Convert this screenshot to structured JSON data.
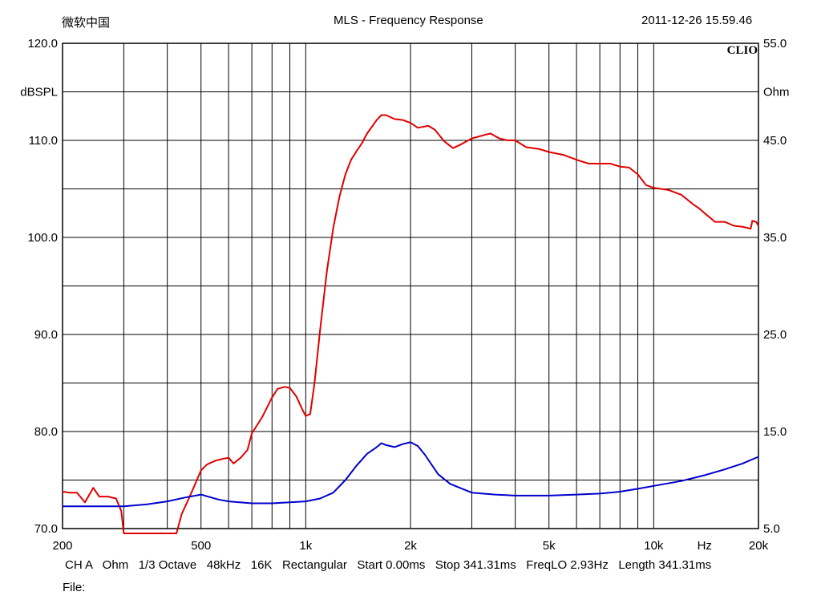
{
  "header": {
    "app_label": "微软中国",
    "title": "MLS - Frequency Response",
    "timestamp": "2011-12-26 15.59.46",
    "logo": "CLIO"
  },
  "footer": {
    "line": "CH A   Ohm   1/3 Octave   48kHz   16K   Rectangular   Start 0.00ms   Stop 341.31ms   FreqLO 2.93Hz   Length 341.31ms",
    "file_label": "File:"
  },
  "chart_data": {
    "type": "line",
    "title": "MLS - Frequency Response",
    "xlabel": "Hz",
    "ylabel_left": "dBSPL",
    "ylabel_right": "Ohm",
    "x_scale": "log",
    "xlim": [
      200,
      20000
    ],
    "ylim_left": [
      70,
      120
    ],
    "ylim_right": [
      5,
      55
    ],
    "grid": true,
    "x_ticks": [
      200,
      300,
      400,
      500,
      600,
      700,
      800,
      900,
      1000,
      2000,
      3000,
      4000,
      5000,
      6000,
      7000,
      8000,
      9000,
      10000,
      20000
    ],
    "x_tick_labels": [
      {
        "value": 200,
        "label": "200"
      },
      {
        "value": 500,
        "label": "500"
      },
      {
        "value": 1000,
        "label": "1k"
      },
      {
        "value": 2000,
        "label": "2k"
      },
      {
        "value": 5000,
        "label": "5k"
      },
      {
        "value": 10000,
        "label": "10k"
      },
      {
        "value": 20000,
        "label": "20k"
      }
    ],
    "x_unit_label": {
      "value": 14000,
      "label": "Hz"
    },
    "y_left_ticks": [
      70,
      75,
      80,
      85,
      90,
      95,
      100,
      105,
      110,
      115,
      120
    ],
    "y_left_tick_labels": [
      {
        "value": 70,
        "label": "70.0"
      },
      {
        "value": 80,
        "label": "80.0"
      },
      {
        "value": 90,
        "label": "90.0"
      },
      {
        "value": 100,
        "label": "100.0"
      },
      {
        "value": 110,
        "label": "110.0"
      },
      {
        "value": 120,
        "label": "120.0"
      }
    ],
    "y_left_unit_label": {
      "value": 115,
      "label": "dBSPL"
    },
    "y_right_tick_labels": [
      {
        "value": 5,
        "label": "5.0"
      },
      {
        "value": 15,
        "label": "15.0"
      },
      {
        "value": 25,
        "label": "25.0"
      },
      {
        "value": 35,
        "label": "35.0"
      },
      {
        "value": 45,
        "label": "45.0"
      },
      {
        "value": 55,
        "label": "55.0"
      }
    ],
    "y_right_unit_label": {
      "value": 50,
      "label": "Ohm"
    },
    "series": [
      {
        "axis": "left",
        "color": "#e00000",
        "points": [
          [
            200,
            73.8
          ],
          [
            210,
            73.7
          ],
          [
            220,
            73.7
          ],
          [
            232,
            72.7
          ],
          [
            245,
            74.2
          ],
          [
            255,
            73.3
          ],
          [
            270,
            73.3
          ],
          [
            285,
            73.1
          ],
          [
            295,
            71.8
          ],
          [
            300,
            69.5
          ],
          [
            425,
            69.5
          ],
          [
            440,
            71.5
          ],
          [
            460,
            73.0
          ],
          [
            480,
            74.5
          ],
          [
            500,
            76.0
          ],
          [
            520,
            76.6
          ],
          [
            550,
            77.0
          ],
          [
            580,
            77.2
          ],
          [
            600,
            77.3
          ],
          [
            620,
            76.7
          ],
          [
            650,
            77.3
          ],
          [
            680,
            78.1
          ],
          [
            700,
            79.8
          ],
          [
            750,
            81.5
          ],
          [
            800,
            83.5
          ],
          [
            830,
            84.4
          ],
          [
            870,
            84.6
          ],
          [
            900,
            84.5
          ],
          [
            940,
            83.6
          ],
          [
            980,
            82.2
          ],
          [
            1000,
            81.6
          ],
          [
            1030,
            81.8
          ],
          [
            1060,
            85.0
          ],
          [
            1100,
            90.5
          ],
          [
            1150,
            96.5
          ],
          [
            1200,
            101.0
          ],
          [
            1250,
            104.2
          ],
          [
            1300,
            106.5
          ],
          [
            1350,
            108.0
          ],
          [
            1400,
            108.9
          ],
          [
            1450,
            109.7
          ],
          [
            1500,
            110.7
          ],
          [
            1600,
            112.1
          ],
          [
            1650,
            112.6
          ],
          [
            1700,
            112.6
          ],
          [
            1800,
            112.2
          ],
          [
            1900,
            112.1
          ],
          [
            2000,
            111.8
          ],
          [
            2100,
            111.3
          ],
          [
            2250,
            111.5
          ],
          [
            2350,
            111.1
          ],
          [
            2500,
            109.9
          ],
          [
            2650,
            109.2
          ],
          [
            2800,
            109.6
          ],
          [
            3000,
            110.2
          ],
          [
            3300,
            110.6
          ],
          [
            3400,
            110.7
          ],
          [
            3600,
            110.2
          ],
          [
            3800,
            110.0
          ],
          [
            4000,
            110.0
          ],
          [
            4300,
            109.3
          ],
          [
            4700,
            109.1
          ],
          [
            5000,
            108.8
          ],
          [
            5500,
            108.5
          ],
          [
            6000,
            108.0
          ],
          [
            6500,
            107.6
          ],
          [
            7000,
            107.6
          ],
          [
            7500,
            107.6
          ],
          [
            8000,
            107.3
          ],
          [
            8500,
            107.2
          ],
          [
            9000,
            106.5
          ],
          [
            9500,
            105.4
          ],
          [
            10000,
            105.1
          ],
          [
            11000,
            104.9
          ],
          [
            12000,
            104.4
          ],
          [
            13000,
            103.4
          ],
          [
            13500,
            103.0
          ],
          [
            14000,
            102.5
          ],
          [
            15000,
            101.6
          ],
          [
            16000,
            101.6
          ],
          [
            17000,
            101.2
          ],
          [
            18000,
            101.1
          ],
          [
            19000,
            100.9
          ],
          [
            19200,
            101.7
          ],
          [
            19700,
            101.6
          ],
          [
            20000,
            101.2
          ]
        ]
      },
      {
        "axis": "right",
        "color": "#0000cc",
        "points": [
          [
            200,
            7.3
          ],
          [
            300,
            7.3
          ],
          [
            350,
            7.5
          ],
          [
            400,
            7.8
          ],
          [
            450,
            8.2
          ],
          [
            500,
            8.5
          ],
          [
            560,
            8.0
          ],
          [
            600,
            7.8
          ],
          [
            700,
            7.6
          ],
          [
            800,
            7.6
          ],
          [
            900,
            7.7
          ],
          [
            1000,
            7.8
          ],
          [
            1100,
            8.1
          ],
          [
            1200,
            8.7
          ],
          [
            1300,
            10.0
          ],
          [
            1400,
            11.5
          ],
          [
            1500,
            12.7
          ],
          [
            1600,
            13.4
          ],
          [
            1650,
            13.8
          ],
          [
            1700,
            13.6
          ],
          [
            1800,
            13.4
          ],
          [
            1900,
            13.7
          ],
          [
            2000,
            13.9
          ],
          [
            2100,
            13.5
          ],
          [
            2200,
            12.6
          ],
          [
            2400,
            10.6
          ],
          [
            2600,
            9.6
          ],
          [
            3000,
            8.7
          ],
          [
            3500,
            8.5
          ],
          [
            4000,
            8.4
          ],
          [
            5000,
            8.4
          ],
          [
            6000,
            8.5
          ],
          [
            7000,
            8.6
          ],
          [
            8000,
            8.8
          ],
          [
            9000,
            9.1
          ],
          [
            10000,
            9.4
          ],
          [
            12000,
            9.9
          ],
          [
            14000,
            10.5
          ],
          [
            16000,
            11.1
          ],
          [
            18000,
            11.7
          ],
          [
            20000,
            12.4
          ]
        ]
      }
    ]
  }
}
